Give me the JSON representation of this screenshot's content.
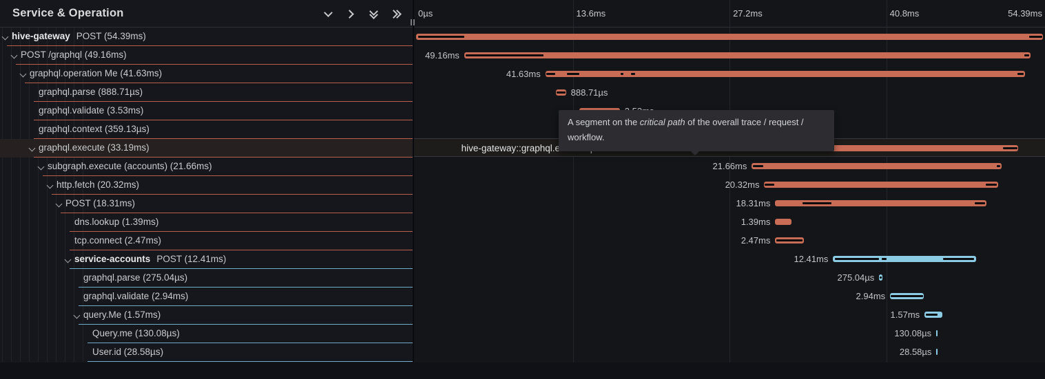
{
  "colors": {
    "bar_red": "#c96c55",
    "bar_blue": "#8bcbe3",
    "border_red": "#b9604a",
    "border_blue": "#71aecb",
    "critical_black": "#0b0c0f",
    "tooltip_bg": "#2c2c31"
  },
  "left_header": {
    "title": "Service & Operation",
    "icons": [
      {
        "name": "collapse-one-icon",
        "glyph": "chevron-down"
      },
      {
        "name": "expand-one-icon",
        "glyph": "chevron-right"
      },
      {
        "name": "collapse-all-icon",
        "glyph": "double-chevron-down"
      },
      {
        "name": "expand-all-icon",
        "glyph": "double-chevron-right"
      }
    ]
  },
  "timeline": {
    "total_ms": 54.39,
    "ticks": [
      {
        "label": "0µs",
        "ms": 0
      },
      {
        "label": "13.6ms",
        "ms": 13.6
      },
      {
        "label": "27.2ms",
        "ms": 27.2
      },
      {
        "label": "40.8ms",
        "ms": 40.8
      },
      {
        "label": "54.39ms",
        "ms": 54.39
      }
    ]
  },
  "tooltip": {
    "prefix": "A segment on the ",
    "emphasis": "critical path",
    "suffix": " of the overall trace / request / workflow."
  },
  "spans": [
    {
      "service": "hive-gateway",
      "name": "POST (54.39ms)",
      "depth": 0,
      "chevron": true,
      "tint": "red",
      "bar": {
        "offset_ms": 0,
        "duration_ms": 54.39,
        "critical": [
          [
            0.2,
            4.2
          ],
          [
            53.2,
            54.39
          ]
        ]
      },
      "tl_label": {
        "text": "",
        "side": "none"
      }
    },
    {
      "service": "",
      "name": "POST /graphql (49.16ms)",
      "depth": 1,
      "chevron": true,
      "tint": "red",
      "bar": {
        "offset_ms": 4.18,
        "duration_ms": 49.16,
        "critical": [
          [
            0.1,
            6.9
          ],
          [
            48.6,
            49.0
          ]
        ]
      },
      "tl_label": {
        "text": "49.16ms",
        "side": "left"
      }
    },
    {
      "service": "",
      "name": "graphql.operation Me (41.63ms)",
      "depth": 2,
      "chevron": true,
      "tint": "red",
      "bar": {
        "offset_ms": 11.22,
        "duration_ms": 41.63,
        "critical": [
          [
            0.08,
            0.88
          ],
          [
            1.88,
            2.93
          ],
          [
            6.51,
            6.75
          ],
          [
            7.41,
            7.77
          ],
          [
            40.98,
            41.48
          ]
        ]
      },
      "tl_label": {
        "text": "41.63ms",
        "side": "left"
      }
    },
    {
      "service": "",
      "name": "graphql.parse (888.71µs)",
      "depth": 3,
      "chevron": false,
      "tint": "red",
      "bar": {
        "offset_ms": 12.12,
        "duration_ms": 0.889,
        "critical": [
          [
            0.05,
            0.84
          ]
        ]
      },
      "tl_label": {
        "text": "888.71µs",
        "side": "right"
      }
    },
    {
      "service": "",
      "name": "graphql.validate (3.53ms)",
      "depth": 3,
      "chevron": false,
      "tint": "red",
      "bar": {
        "offset_ms": 14.15,
        "duration_ms": 3.53,
        "critical": [
          [
            0.1,
            3.43
          ]
        ]
      },
      "tl_label": {
        "text": "3.53ms",
        "side": "right"
      }
    },
    {
      "service": "",
      "name": "graphql.context (359.13µs)",
      "depth": 3,
      "chevron": false,
      "tint": "red",
      "bar": {
        "offset_ms": 17.97,
        "duration_ms": 0.359,
        "critical": []
      },
      "tl_label": {
        "text": "359.13µs",
        "side": "right"
      }
    },
    {
      "service": "",
      "name": "graphql.execute (33.19ms)",
      "depth": 3,
      "chevron": true,
      "tint": "red",
      "hover": true,
      "bar": {
        "offset_ms": 19.04,
        "duration_ms": 33.19,
        "critical": [
          [
            0.12,
            10.03
          ],
          [
            31.86,
            33.16
          ]
        ]
      },
      "tl_label": {
        "text": "hive-gateway::graphql.execute | 33.19ms",
        "side": "left",
        "big": true
      }
    },
    {
      "service": "",
      "name": "subgraph.execute (accounts) (21.66ms)",
      "depth": 4,
      "chevron": true,
      "tint": "red",
      "bar": {
        "offset_ms": 29.13,
        "duration_ms": 21.66,
        "critical": [
          [
            0.07,
            0.97
          ],
          [
            21.27,
            21.57
          ]
        ]
      },
      "tl_label": {
        "text": "21.66ms",
        "side": "left"
      }
    },
    {
      "service": "",
      "name": "http.fetch (20.32ms)",
      "depth": 5,
      "chevron": true,
      "tint": "red",
      "bar": {
        "offset_ms": 30.21,
        "duration_ms": 20.32,
        "critical": [
          [
            0.04,
            0.89
          ],
          [
            19.19,
            20.19
          ]
        ]
      },
      "tl_label": {
        "text": "20.32ms",
        "side": "left"
      }
    },
    {
      "service": "",
      "name": "POST (18.31ms)",
      "depth": 6,
      "chevron": true,
      "tint": "red",
      "bar": {
        "offset_ms": 31.16,
        "duration_ms": 18.31,
        "critical": [
          [
            2.39,
            4.9
          ],
          [
            17.32,
            18.21
          ]
        ]
      },
      "tl_label": {
        "text": "18.31ms",
        "side": "left"
      }
    },
    {
      "service": "",
      "name": "dns.lookup (1.39ms)",
      "depth": 7,
      "chevron": false,
      "tint": "red",
      "bar": {
        "offset_ms": 31.16,
        "duration_ms": 1.39,
        "critical": []
      },
      "tl_label": {
        "text": "1.39ms",
        "side": "left"
      }
    },
    {
      "service": "",
      "name": "tcp.connect (2.47ms)",
      "depth": 7,
      "chevron": false,
      "tint": "red",
      "bar": {
        "offset_ms": 31.16,
        "duration_ms": 2.47,
        "critical": [
          [
            0.08,
            2.39
          ]
        ]
      },
      "tl_label": {
        "text": "2.47ms",
        "side": "left"
      }
    },
    {
      "service": "service-accounts",
      "name": "POST (12.41ms)",
      "depth": 7,
      "chevron": true,
      "tint": "blue",
      "bar": {
        "offset_ms": 36.18,
        "duration_ms": 12.41,
        "critical": [
          [
            0.18,
            4.0
          ],
          [
            4.24,
            4.66
          ],
          [
            9.55,
            12.24
          ]
        ]
      },
      "tl_label": {
        "text": "12.41ms",
        "side": "left"
      }
    },
    {
      "service": "",
      "name": "graphql.parse (275.04µs)",
      "depth": 8,
      "chevron": false,
      "tint": "blue",
      "bar": {
        "offset_ms": 40.18,
        "duration_ms": 0.275,
        "critical": [
          [
            0.05,
            0.22
          ]
        ]
      },
      "tl_label": {
        "text": "275.04µs",
        "side": "left"
      }
    },
    {
      "service": "",
      "name": "graphql.validate (2.94ms)",
      "depth": 8,
      "chevron": false,
      "tint": "blue",
      "bar": {
        "offset_ms": 41.13,
        "duration_ms": 2.94,
        "critical": [
          [
            0.08,
            2.86
          ]
        ]
      },
      "tl_label": {
        "text": "2.94ms",
        "side": "left"
      }
    },
    {
      "service": "",
      "name": "query.Me (1.57ms)",
      "depth": 8,
      "chevron": true,
      "tint": "blue",
      "bar": {
        "offset_ms": 44.12,
        "duration_ms": 1.57,
        "critical": [
          [
            0.08,
            1.13
          ]
        ]
      },
      "tl_label": {
        "text": "1.57ms",
        "side": "left"
      }
    },
    {
      "service": "",
      "name": "Query.me (130.08µs)",
      "depth": 9,
      "chevron": false,
      "tint": "blue",
      "bar": {
        "offset_ms": 45.13,
        "duration_ms": 0.13,
        "critical": []
      },
      "tl_label": {
        "text": "130.08µs",
        "side": "left"
      }
    },
    {
      "service": "",
      "name": "User.id (28.58µs)",
      "depth": 9,
      "chevron": false,
      "tint": "blue",
      "bar": {
        "offset_ms": 45.15,
        "duration_ms": 0.029,
        "critical": []
      },
      "tl_label": {
        "text": "28.58µs",
        "side": "left"
      }
    }
  ]
}
